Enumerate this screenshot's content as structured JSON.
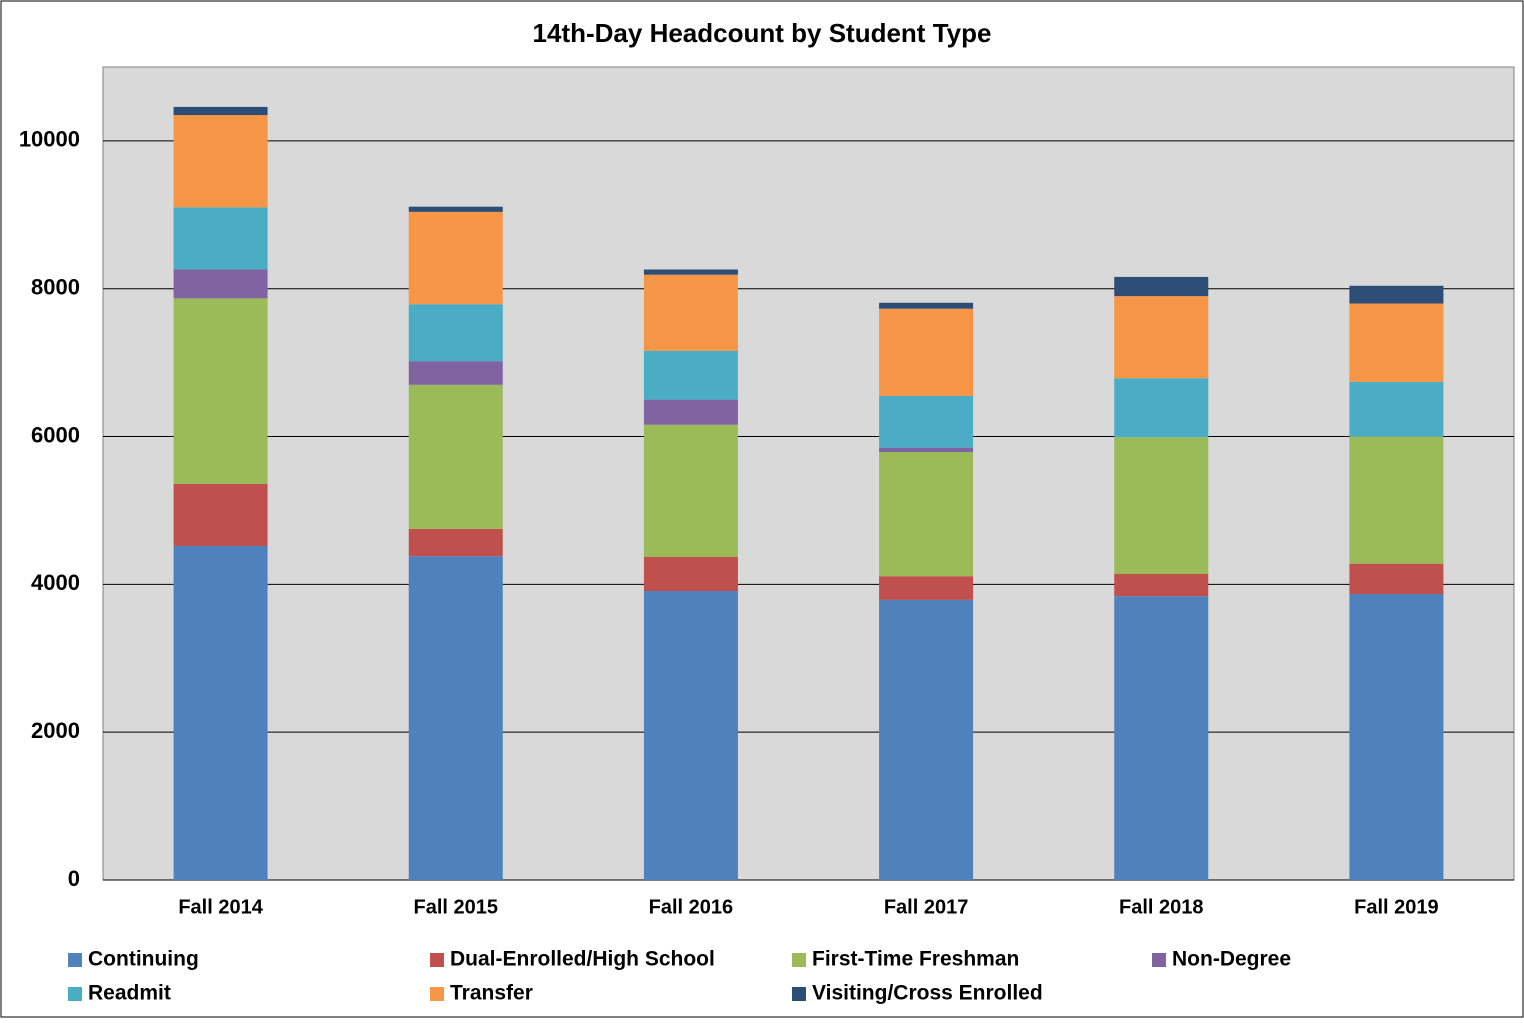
{
  "chart_data": {
    "type": "stacked_bar",
    "title": "14th-Day Headcount by Student Type",
    "categories": [
      "Fall 2014",
      "Fall 2015",
      "Fall 2016",
      "Fall 2017",
      "Fall 2018",
      "Fall 2019"
    ],
    "series": [
      {
        "name": "Continuing",
        "color": "#4f81bd",
        "values": [
          4520,
          4380,
          3910,
          3790,
          3840,
          3870
        ]
      },
      {
        "name": "Dual-Enrolled/High School",
        "color": "#c0504d",
        "values": [
          840,
          370,
          460,
          320,
          300,
          410
        ]
      },
      {
        "name": "First-Time Freshman",
        "color": "#9bbb59",
        "values": [
          2510,
          1950,
          1790,
          1680,
          1850,
          1720
        ]
      },
      {
        "name": "Non-Degree",
        "color": "#8064a2",
        "values": [
          390,
          320,
          340,
          60,
          0,
          0
        ]
      },
      {
        "name": "Readmit",
        "color": "#4bacc6",
        "values": [
          840,
          770,
          660,
          700,
          800,
          740
        ]
      },
      {
        "name": "Transfer",
        "color": "#f79646",
        "values": [
          1250,
          1250,
          1030,
          1180,
          1110,
          1060
        ]
      },
      {
        "name": "Visiting/Cross Enrolled",
        "color": "#2c4d75",
        "values": [
          110,
          70,
          70,
          80,
          260,
          240
        ]
      }
    ],
    "ylim": [
      0,
      11000
    ],
    "yticks": [
      0,
      2000,
      4000,
      6000,
      8000,
      10000
    ],
    "grid": true,
    "legend": "bottom"
  }
}
